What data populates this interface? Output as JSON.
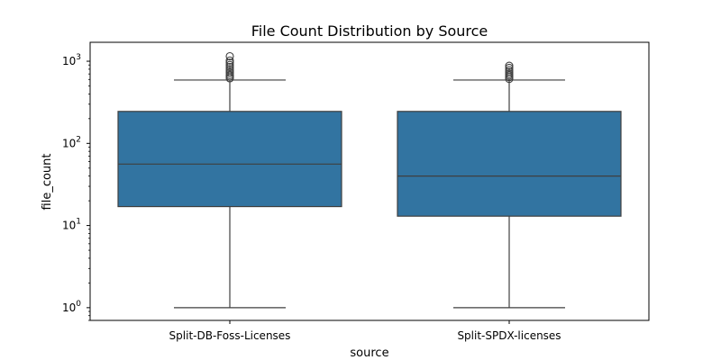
{
  "chart_data": {
    "type": "box",
    "title": "File Count Distribution by Source",
    "xlabel": "source",
    "ylabel": "file_count",
    "y_scale": "log",
    "ylim": [
      0.7,
      1700
    ],
    "y_ticks": [
      {
        "value": 1,
        "base": "10",
        "exp": "0"
      },
      {
        "value": 10,
        "base": "10",
        "exp": "1"
      },
      {
        "value": 100,
        "base": "10",
        "exp": "2"
      },
      {
        "value": 1000,
        "base": "10",
        "exp": "3"
      }
    ],
    "categories": [
      "Split-DB-Foss-Licenses",
      "Split-SPDX-licenses"
    ],
    "boxes": [
      {
        "category": "Split-DB-Foss-Licenses",
        "whisker_low": 1,
        "q1": 17,
        "median": 56,
        "q3": 245,
        "whisker_high": 590,
        "outliers": [
          620,
          650,
          680,
          720,
          760,
          800,
          850,
          900,
          960,
          1020,
          1150
        ]
      },
      {
        "category": "Split-SPDX-licenses",
        "whisker_low": 1,
        "q1": 13,
        "median": 40,
        "q3": 245,
        "whisker_high": 590,
        "outliers": [
          610,
          640,
          670,
          700,
          740,
          780,
          830,
          880
        ]
      }
    ],
    "colors": {
      "box_fill": "#3274a1",
      "line": "#3f3f3f",
      "frame": "#000000"
    },
    "grid": false,
    "legend": "none"
  }
}
